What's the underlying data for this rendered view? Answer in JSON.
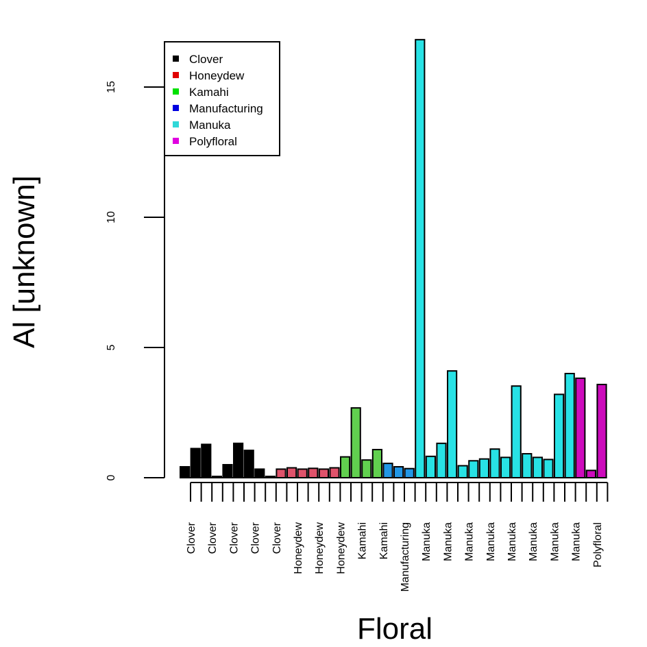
{
  "chart_data": {
    "type": "bar",
    "xlabel": "Floral",
    "ylabel": "Al [unknown]",
    "ylim": [
      0,
      17
    ],
    "y_ticks": [
      "0",
      "5",
      "10",
      "15"
    ],
    "y_tick_values": [
      0,
      5,
      10,
      15
    ],
    "grid": false,
    "legend_position": "top-left",
    "legend": [
      {
        "label": "Clover",
        "color": "#000000"
      },
      {
        "label": "Honeydew",
        "color": "#e00000"
      },
      {
        "label": "Kamahi",
        "color": "#00e000"
      },
      {
        "label": "Manufacturing",
        "color": "#0000e0"
      },
      {
        "label": "Manuka",
        "color": "#30d8d8"
      },
      {
        "label": "Polyfloral",
        "color": "#e000e0"
      }
    ],
    "bar_colors": {
      "Clover": "#000000",
      "Honeydew": "#df536b",
      "Kamahi": "#61d04f",
      "Manufacturing": "#2297e6",
      "Manuka": "#28e2e5",
      "Polyfloral": "#cd0bbc"
    },
    "bars": [
      {
        "category": "Clover",
        "value": 0.42
      },
      {
        "category": "Clover",
        "value": 1.12
      },
      {
        "category": "Clover",
        "value": 1.28
      },
      {
        "category": "Clover",
        "value": 0.05
      },
      {
        "category": "Clover",
        "value": 0.5
      },
      {
        "category": "Clover",
        "value": 1.32
      },
      {
        "category": "Clover",
        "value": 1.05
      },
      {
        "category": "Clover",
        "value": 0.33
      },
      {
        "category": "Clover",
        "value": 0.05
      },
      {
        "category": "Honeydew",
        "value": 0.33
      },
      {
        "category": "Honeydew",
        "value": 0.38
      },
      {
        "category": "Honeydew",
        "value": 0.33
      },
      {
        "category": "Honeydew",
        "value": 0.36
      },
      {
        "category": "Honeydew",
        "value": 0.33
      },
      {
        "category": "Honeydew",
        "value": 0.38
      },
      {
        "category": "Kamahi",
        "value": 0.8
      },
      {
        "category": "Kamahi",
        "value": 2.68
      },
      {
        "category": "Kamahi",
        "value": 0.68
      },
      {
        "category": "Kamahi",
        "value": 1.08
      },
      {
        "category": "Manufacturing",
        "value": 0.55
      },
      {
        "category": "Manufacturing",
        "value": 0.42
      },
      {
        "category": "Manufacturing",
        "value": 0.35
      },
      {
        "category": "Manuka",
        "value": 16.82
      },
      {
        "category": "Manuka",
        "value": 0.82
      },
      {
        "category": "Manuka",
        "value": 1.32
      },
      {
        "category": "Manuka",
        "value": 4.1
      },
      {
        "category": "Manuka",
        "value": 0.46
      },
      {
        "category": "Manuka",
        "value": 0.65
      },
      {
        "category": "Manuka",
        "value": 0.72
      },
      {
        "category": "Manuka",
        "value": 1.1
      },
      {
        "category": "Manuka",
        "value": 0.78
      },
      {
        "category": "Manuka",
        "value": 3.52
      },
      {
        "category": "Manuka",
        "value": 0.92
      },
      {
        "category": "Manuka",
        "value": 0.78
      },
      {
        "category": "Manuka",
        "value": 0.7
      },
      {
        "category": "Manuka",
        "value": 3.2
      },
      {
        "category": "Manuka",
        "value": 4.0
      },
      {
        "category": "Polyfloral",
        "value": 3.82
      },
      {
        "category": "Polyfloral",
        "value": 0.28
      },
      {
        "category": "Polyfloral",
        "value": 3.58
      }
    ],
    "x_tick_labels": [
      "Clover",
      "Clover",
      "Clover",
      "Clover",
      "Clover",
      "Honeydew",
      "Honeydew",
      "Honeydew",
      "Kamahi",
      "Kamahi",
      "Manufacturing",
      "Manuka",
      "Manuka",
      "Manuka",
      "Manuka",
      "Manuka",
      "Manuka",
      "Manuka",
      "Manuka",
      "Polyfloral"
    ]
  }
}
